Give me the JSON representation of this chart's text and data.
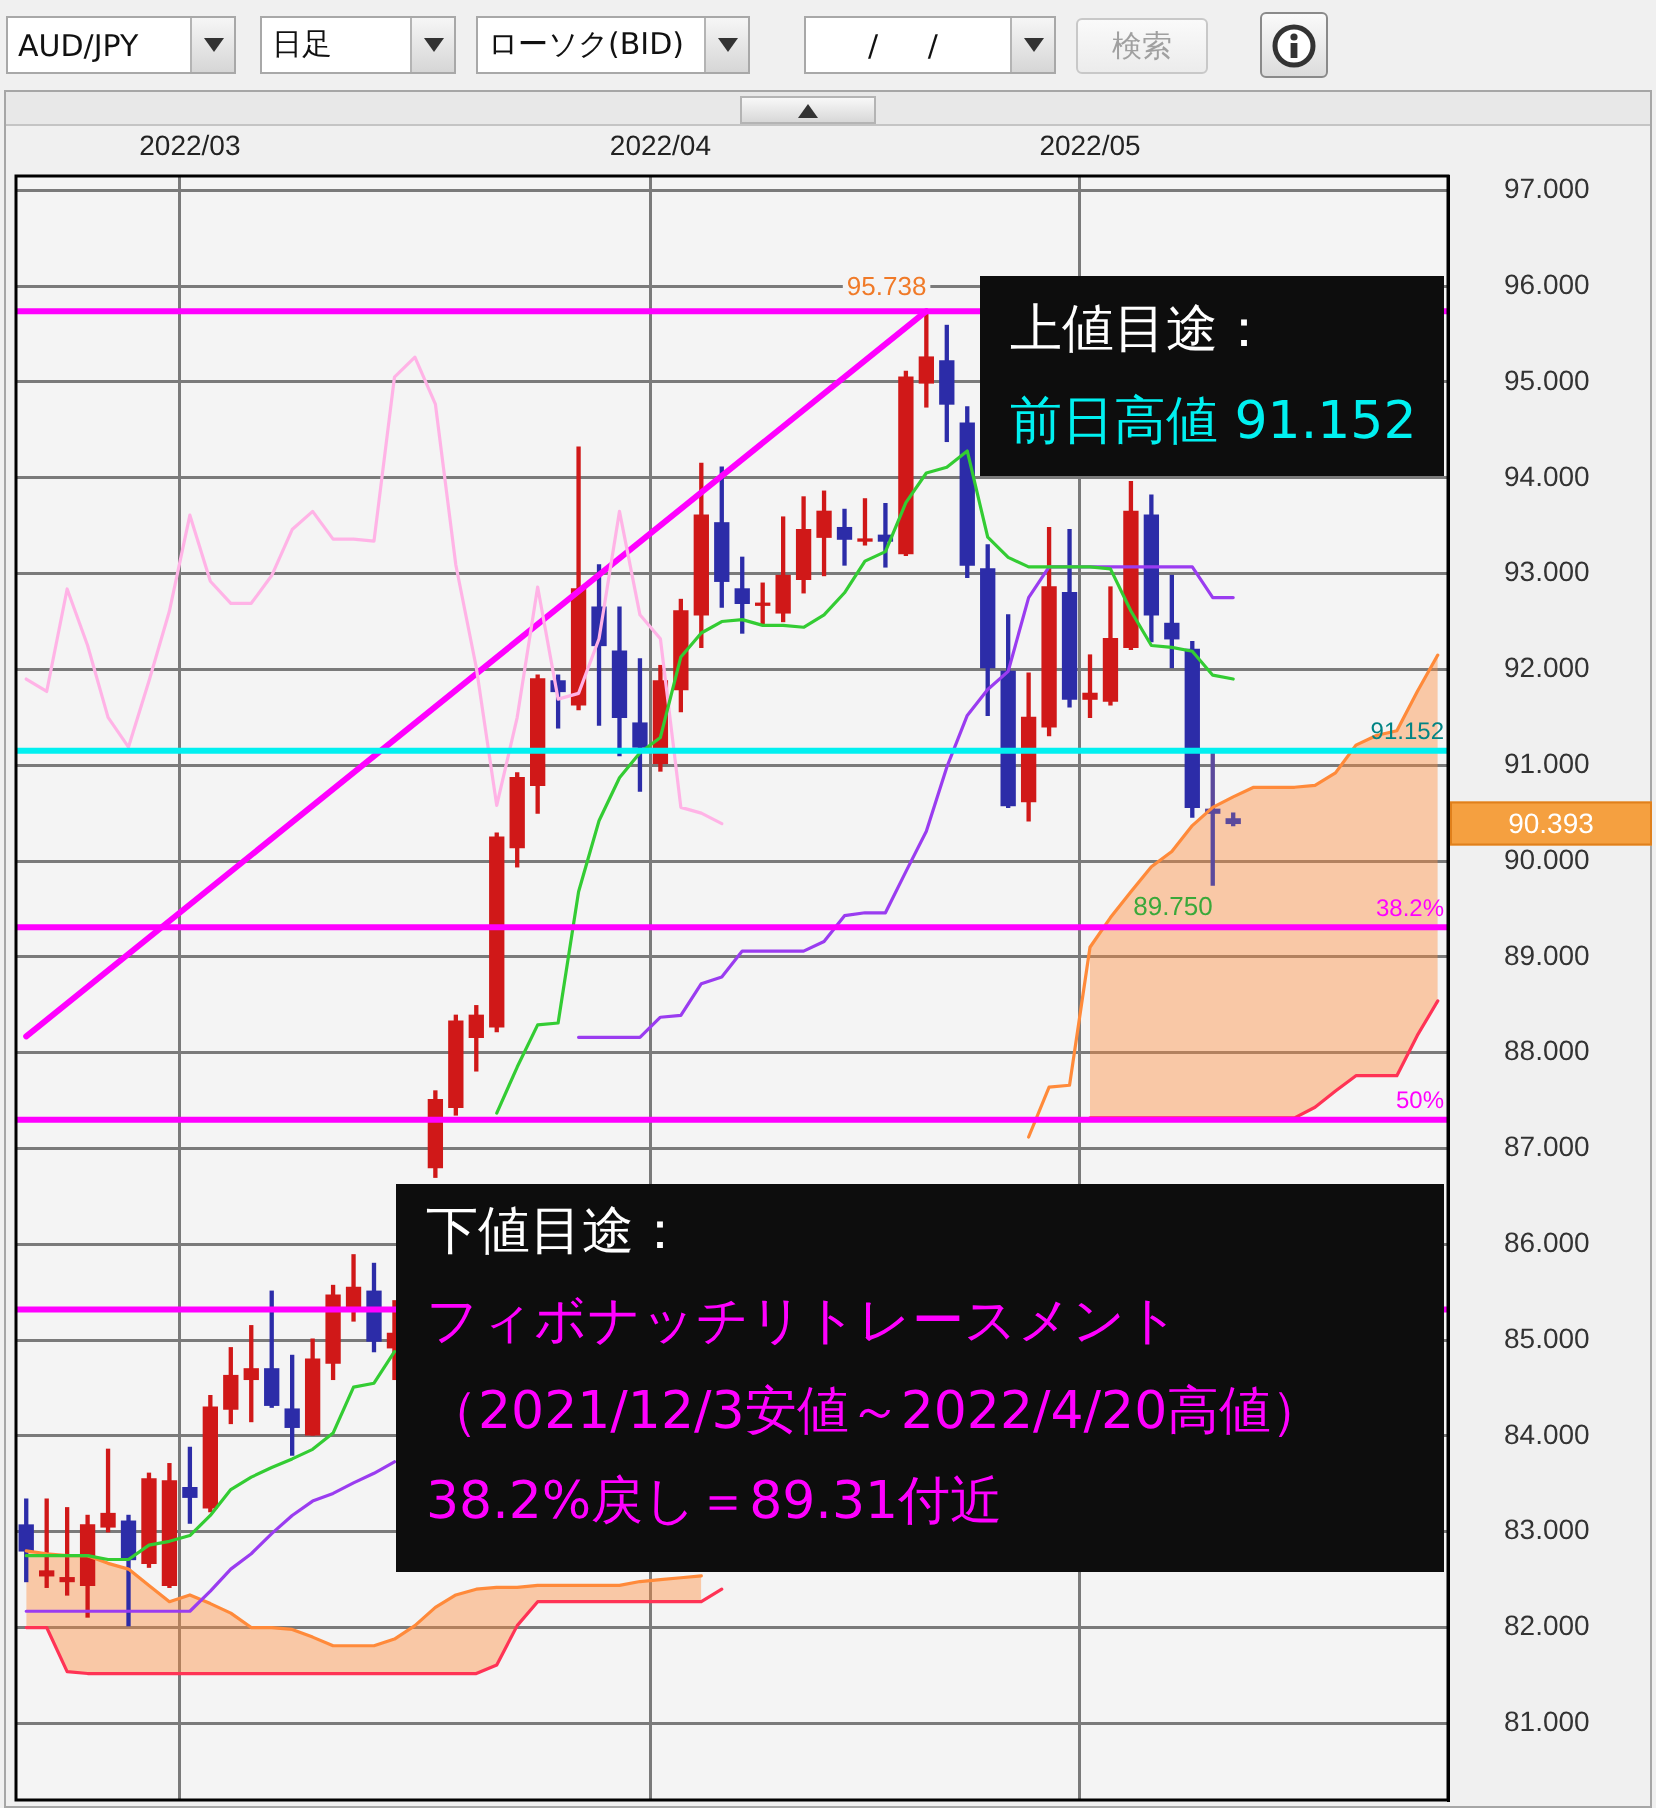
{
  "chart_data": {
    "type": "candlestick",
    "title": "AUD/JPY",
    "subtitle": "日足",
    "categories": [
      null,
      null,
      null,
      null,
      null,
      null,
      null,
      null,
      "2022/03",
      null,
      null,
      null,
      null,
      null,
      null,
      null,
      null,
      null,
      null,
      null,
      null,
      null,
      null,
      null,
      null,
      null,
      null,
      null,
      null,
      null,
      null,
      "2022/04",
      null,
      null,
      null,
      null,
      null,
      null,
      null,
      null,
      null,
      null,
      null,
      null,
      null,
      null,
      null,
      null,
      null,
      null,
      null,
      null,
      "2022/05",
      null,
      null,
      null,
      null,
      null,
      null,
      null,
      null,
      null,
      null,
      null,
      null,
      null,
      null,
      null,
      null,
      null
    ],
    "ohlc": [
      [
        83.07,
        83.34,
        82.48,
        82.8
      ],
      [
        82.54,
        83.34,
        82.42,
        82.59
      ],
      [
        82.48,
        83.25,
        82.34,
        82.52
      ],
      [
        82.44,
        83.17,
        82.11,
        83.07
      ],
      [
        83.05,
        83.86,
        83.0,
        83.19
      ],
      [
        83.11,
        83.17,
        82.02,
        82.71
      ],
      [
        82.67,
        83.61,
        82.63,
        83.55
      ],
      [
        82.44,
        83.71,
        82.42,
        83.53
      ],
      [
        83.46,
        83.88,
        83.09,
        83.36
      ],
      [
        83.25,
        84.42,
        83.21,
        84.3
      ],
      [
        84.28,
        84.92,
        84.13,
        84.63
      ],
      [
        84.59,
        85.15,
        84.15,
        84.7
      ],
      [
        84.7,
        85.51,
        84.3,
        84.32
      ],
      [
        84.28,
        84.84,
        83.8,
        84.09
      ],
      [
        84.01,
        85.01,
        84.01,
        84.8
      ],
      [
        84.76,
        85.57,
        84.59,
        85.47
      ],
      [
        85.32,
        85.89,
        85.2,
        85.55
      ],
      [
        85.51,
        85.8,
        84.88,
        84.99
      ],
      [
        84.92,
        85.41,
        84.59,
        85.07
      ],
      null,
      [
        86.8,
        87.6,
        86.7,
        87.51
      ],
      [
        87.43,
        88.39,
        87.35,
        88.33
      ],
      [
        88.16,
        88.49,
        87.81,
        88.39
      ],
      [
        88.27,
        90.29,
        88.22,
        90.25
      ],
      [
        90.14,
        90.92,
        89.94,
        90.87
      ],
      [
        90.79,
        91.94,
        90.5,
        91.9
      ],
      [
        91.88,
        91.94,
        91.39,
        91.77
      ],
      [
        91.63,
        94.32,
        91.58,
        92.84
      ],
      [
        92.65,
        93.09,
        91.42,
        92.25
      ],
      [
        92.19,
        92.65,
        91.1,
        91.5
      ],
      [
        91.44,
        92.11,
        90.73,
        91.19
      ],
      [
        91.02,
        92.04,
        90.94,
        91.88
      ],
      [
        91.79,
        92.73,
        91.56,
        92.61
      ],
      [
        92.57,
        94.15,
        92.23,
        93.61
      ],
      [
        93.53,
        94.11,
        92.65,
        92.92
      ],
      [
        92.84,
        93.17,
        92.38,
        92.69
      ],
      [
        92.67,
        92.9,
        92.46,
        92.69
      ],
      [
        92.59,
        93.59,
        92.5,
        92.98
      ],
      [
        92.94,
        93.8,
        92.8,
        93.46
      ],
      [
        93.38,
        93.86,
        92.98,
        93.65
      ],
      [
        93.48,
        93.67,
        93.09,
        93.36
      ],
      [
        93.34,
        93.78,
        93.3,
        93.36
      ],
      [
        93.4,
        93.73,
        93.07,
        93.34
      ],
      [
        93.21,
        95.11,
        93.19,
        95.05
      ],
      [
        94.99,
        95.738,
        94.74,
        95.26
      ],
      [
        95.22,
        95.59,
        94.38,
        94.77
      ],
      [
        94.57,
        94.74,
        92.96,
        93.09
      ],
      [
        93.05,
        93.3,
        91.52,
        92.02
      ],
      [
        91.98,
        92.57,
        90.56,
        90.58
      ],
      [
        90.62,
        91.96,
        90.42,
        91.5
      ],
      [
        91.4,
        93.48,
        91.31,
        92.86
      ],
      [
        92.8,
        93.46,
        91.61,
        91.69
      ],
      [
        91.69,
        92.15,
        91.5,
        91.75
      ],
      [
        91.67,
        92.86,
        91.63,
        92.32
      ],
      [
        92.23,
        93.96,
        92.21,
        93.65
      ],
      [
        93.61,
        93.82,
        92.29,
        92.57
      ],
      [
        92.48,
        92.98,
        92.02,
        92.32
      ],
      [
        92.21,
        92.29,
        90.46,
        90.56
      ],
      [
        90.54,
        91.152,
        89.75,
        90.5
      ],
      [
        90.44,
        90.5,
        90.37,
        90.393
      ],
      null,
      null,
      null,
      null,
      null,
      null,
      null,
      null,
      null,
      null
    ],
    "colors": [
      "#2c2ca8",
      "#d01818",
      "#d01818",
      "#d01818",
      "#d01818",
      "#2c2ca8",
      "#d01818",
      "#d01818",
      "#2c2ca8",
      "#d01818",
      "#d01818",
      "#d01818",
      "#2c2ca8",
      "#2c2ca8",
      "#d01818",
      "#d01818",
      "#d01818",
      "#2c2ca8",
      "#d01818",
      null,
      "#d01818",
      "#d01818",
      "#d01818",
      "#d01818",
      "#d01818",
      "#d01818",
      "#2c2ca8",
      "#d01818",
      "#2c2ca8",
      "#2c2ca8",
      "#2c2ca8",
      "#d01818",
      "#d01818",
      "#d01818",
      "#2c2ca8",
      "#2c2ca8",
      "#d01818",
      "#d01818",
      "#d01818",
      "#d01818",
      "#2c2ca8",
      "#d01818",
      "#2c2ca8",
      "#d01818",
      "#d01818",
      "#2c2ca8",
      "#2c2ca8",
      "#2c2ca8",
      "#2c2ca8",
      "#d01818",
      "#d01818",
      "#2c2ca8",
      "#d01818",
      "#d01818",
      "#d01818",
      "#2c2ca8",
      "#2c2ca8",
      "#2c2ca8",
      "#5b4a9c",
      "#5b4a9c",
      null,
      null,
      null,
      null,
      null,
      null,
      null,
      null,
      null,
      null
    ],
    "series": [
      {
        "type": "line",
        "color": "#33cc33",
        "values": [
          82.75,
          82.75,
          82.75,
          82.75,
          82.71,
          82.71,
          82.86,
          82.9,
          82.96,
          83.17,
          83.44,
          83.57,
          83.67,
          83.76,
          83.86,
          84.03,
          84.51,
          84.55,
          84.88,
          null,
          null,
          null,
          null,
          87.37,
          87.85,
          88.29,
          88.31,
          89.68,
          90.42,
          90.87,
          91.13,
          91.29,
          92.13,
          92.38,
          92.5,
          92.52,
          92.46,
          92.46,
          92.44,
          92.57,
          92.8,
          93.13,
          93.23,
          93.74,
          94.05,
          94.11,
          94.28,
          93.38,
          93.17,
          93.07,
          93.07,
          93.07,
          93.07,
          93.05,
          92.61,
          92.25,
          92.23,
          92.19,
          91.94,
          91.9,
          null,
          null,
          null,
          null,
          null,
          null,
          null,
          null,
          null,
          null
        ]
      },
      {
        "type": "line",
        "color": "#9a3cf0",
        "values": [
          82.17,
          82.17,
          82.17,
          82.17,
          82.17,
          82.17,
          82.17,
          82.17,
          82.17,
          82.38,
          82.61,
          82.77,
          82.98,
          83.17,
          83.32,
          83.4,
          83.51,
          83.61,
          83.73,
          null,
          null,
          null,
          null,
          null,
          null,
          null,
          null,
          88.16,
          88.16,
          88.16,
          88.16,
          88.37,
          88.39,
          88.72,
          88.79,
          89.06,
          89.06,
          89.06,
          89.06,
          89.16,
          89.43,
          89.46,
          89.46,
          89.89,
          90.31,
          90.98,
          91.52,
          91.79,
          91.98,
          92.75,
          93.07,
          93.07,
          93.07,
          93.07,
          93.07,
          93.07,
          93.07,
          93.07,
          92.75,
          92.75,
          null,
          null,
          null,
          null,
          null,
          null,
          null,
          null,
          null,
          null
        ]
      },
      {
        "type": "line",
        "color": "#ffb3e6",
        "values": [
          91.9,
          91.77,
          92.84,
          92.25,
          91.5,
          91.19,
          91.88,
          92.61,
          93.61,
          92.92,
          92.69,
          92.69,
          92.98,
          93.46,
          93.65,
          93.36,
          93.36,
          93.34,
          95.05,
          95.26,
          94.77,
          93.09,
          92.02,
          90.58,
          91.5,
          92.86,
          91.69,
          91.75,
          92.32,
          93.65,
          92.57,
          92.32,
          90.56,
          90.5,
          90.39,
          null,
          null,
          null,
          null,
          null,
          null,
          null,
          null,
          null,
          null,
          null,
          null,
          null,
          null,
          null,
          null,
          null,
          null,
          null,
          null,
          null,
          null,
          null,
          null,
          null,
          null,
          null,
          null,
          null,
          null,
          null,
          null,
          null,
          null,
          null
        ]
      },
      {
        "type": "line",
        "color": "#ff8a3a",
        "values": [
          82.8,
          82.77,
          82.75,
          82.75,
          82.67,
          82.61,
          82.44,
          82.27,
          82.34,
          82.25,
          82.15,
          82.0,
          82.0,
          81.98,
          81.9,
          81.81,
          81.81,
          81.81,
          81.88,
          82.02,
          82.21,
          82.34,
          82.4,
          82.42,
          82.42,
          82.44,
          82.44,
          82.44,
          82.44,
          82.44,
          82.48,
          82.5,
          82.52,
          82.54,
          null,
          null,
          null,
          null,
          null,
          null,
          null,
          null,
          null,
          null,
          null,
          null,
          null,
          null,
          null,
          null,
          null,
          null,
          null,
          null,
          null,
          null,
          null,
          null,
          null,
          null,
          null,
          null,
          null,
          null,
          null,
          null,
          null,
          null,
          null,
          null
        ],
        "upper": [
          82.8,
          82.77,
          82.75,
          82.75,
          82.67,
          82.61,
          82.44,
          82.27,
          82.34,
          82.25,
          82.15,
          82.0,
          82.0,
          81.98,
          81.9,
          81.81,
          81.81,
          81.81,
          81.88,
          82.02,
          82.21,
          82.34,
          82.4,
          82.42,
          82.42,
          82.44,
          82.44,
          82.44,
          82.44,
          82.44,
          82.48,
          82.5,
          82.52,
          82.54,
          null,
          null,
          null,
          null,
          null,
          null,
          null,
          null,
          null,
          null,
          null,
          null,
          null,
          null,
          null,
          null,
          null,
          null,
          null,
          null,
          null,
          null,
          null,
          null,
          null,
          null,
          null,
          null,
          null,
          null,
          null,
          null,
          null,
          null,
          null,
          null
        ],
        "lower": [
          82.0,
          82.0,
          81.54,
          81.52,
          81.52,
          81.52,
          81.52,
          81.52,
          81.52,
          81.52,
          81.52,
          81.52,
          81.52,
          81.52,
          81.52,
          81.52,
          81.52,
          81.52,
          81.52,
          81.52,
          81.52,
          81.52,
          81.52,
          81.61,
          82.02,
          82.27,
          82.27,
          82.27,
          82.27,
          82.27,
          82.27,
          82.27,
          82.27,
          82.27,
          null,
          null,
          null,
          null,
          null,
          null,
          null,
          null,
          null,
          null,
          null,
          null,
          null,
          null,
          null,
          null,
          null,
          null,
          null,
          null,
          null,
          null,
          null,
          null,
          null,
          null,
          null,
          null,
          null,
          null,
          null,
          null,
          null,
          null,
          null,
          null
        ]
      },
      {
        "type": "line",
        "color": "#ff8a3a",
        "values": [
          null,
          null,
          null,
          null,
          null,
          null,
          null,
          null,
          null,
          null,
          null,
          null,
          null,
          null,
          null,
          null,
          null,
          null,
          null,
          null,
          null,
          null,
          null,
          null,
          null,
          null,
          null,
          null,
          null,
          null,
          null,
          null,
          null,
          null,
          null,
          null,
          null,
          null,
          null,
          null,
          null,
          null,
          null,
          null,
          null,
          null,
          null,
          null,
          null,
          87.12,
          87.64,
          87.66,
          89.1,
          89.41,
          89.68,
          89.94,
          90.1,
          90.37,
          90.56,
          90.67,
          90.77,
          90.77,
          90.77,
          90.79,
          90.92,
          91.21,
          91.31,
          91.36,
          91.77,
          92.15
        ],
        "upper": [
          null,
          null,
          null,
          null,
          null,
          null,
          null,
          null,
          null,
          null,
          null,
          null,
          null,
          null,
          null,
          null,
          null,
          null,
          null,
          null,
          null,
          null,
          null,
          null,
          null,
          null,
          null,
          null,
          null,
          null,
          null,
          null,
          null,
          null,
          null,
          null,
          null,
          null,
          null,
          null,
          null,
          null,
          null,
          null,
          null,
          null,
          null,
          null,
          null,
          null,
          null,
          null,
          89.1,
          89.41,
          89.68,
          89.94,
          90.1,
          90.37,
          90.56,
          90.67,
          90.77,
          90.77,
          90.77,
          90.79,
          90.92,
          91.21,
          91.31,
          91.36,
          91.77,
          92.15
        ],
        "lower": [
          null,
          null,
          null,
          null,
          null,
          null,
          null,
          null,
          null,
          null,
          null,
          null,
          null,
          null,
          null,
          null,
          null,
          null,
          null,
          null,
          null,
          null,
          null,
          null,
          null,
          null,
          null,
          null,
          null,
          null,
          null,
          null,
          null,
          null,
          null,
          null,
          null,
          null,
          null,
          null,
          null,
          null,
          null,
          null,
          null,
          null,
          null,
          null,
          null,
          null,
          null,
          null,
          87.32,
          87.32,
          87.32,
          87.32,
          87.32,
          87.32,
          87.32,
          87.32,
          87.32,
          87.32,
          87.32,
          87.43,
          87.6,
          87.76,
          87.76,
          87.76,
          88.18,
          88.54
        ]
      },
      {
        "type": "line",
        "color": "#ff3355",
        "values": [
          82.0,
          82.0,
          81.54,
          81.52,
          81.52,
          81.52,
          81.52,
          81.52,
          81.52,
          81.52,
          81.52,
          81.52,
          81.52,
          81.52,
          81.52,
          81.52,
          81.52,
          81.52,
          81.52,
          81.52,
          81.52,
          81.52,
          81.52,
          81.61,
          82.02,
          82.27,
          82.27,
          82.27,
          82.27,
          82.27,
          82.27,
          82.27,
          82.27,
          82.27,
          82.4,
          null,
          null,
          null,
          null,
          null,
          null,
          null,
          null,
          null,
          null,
          null,
          null,
          null,
          null,
          null,
          null,
          null,
          87.32,
          87.32,
          87.32,
          87.32,
          87.32,
          87.32,
          87.32,
          87.32,
          87.32,
          87.32,
          87.32,
          87.43,
          87.6,
          87.76,
          87.76,
          87.76,
          88.18,
          88.54
        ]
      },
      {
        "type": "line",
        "color": "#ff00ff",
        "values": [
          88.17,
          null,
          null,
          null,
          null,
          null,
          null,
          null,
          null,
          null,
          null,
          null,
          null,
          null,
          null,
          null,
          null,
          null,
          null,
          null,
          null,
          null,
          null,
          null,
          null,
          null,
          null,
          null,
          null,
          null,
          null,
          null,
          null,
          null,
          null,
          null,
          null,
          null,
          null,
          null,
          null,
          null,
          null,
          null,
          95.74,
          null,
          null,
          null,
          null,
          null,
          null,
          null,
          null,
          null,
          null,
          null,
          null,
          null,
          null,
          null,
          null,
          null,
          null,
          null,
          null,
          null,
          null,
          null,
          null,
          null
        ]
      }
    ],
    "ref_lines": [
      {
        "axis": "y",
        "value": 95.738,
        "color": "#ff00ff"
      },
      {
        "axis": "y",
        "value": 91.152,
        "label": "91.152",
        "color": "#00f0f0"
      },
      {
        "axis": "y",
        "value": 89.31,
        "color": "#ff00ff"
      },
      {
        "axis": "y",
        "value": 87.3,
        "color": "#ff00ff"
      },
      {
        "axis": "y",
        "value": 85.32,
        "color": "#ff00ff"
      }
    ],
    "annotations": [
      "ローソク(BID)",
      "/ /",
      "検索",
      "上値目途：",
      "前日高値 91.152",
      "下値目途：",
      "フィボナッチリトレースメント",
      "（2021/12/3安値～2022/4/20高値）",
      "38.2%戻し＝89.31付近",
      "95.738",
      "89.750",
      "90.393",
      {
        "text": "38.2%",
        "y": 89.31
      },
      {
        "text": "50%",
        "y": 87.3
      }
    ],
    "ylim": [
      80.2,
      97.15
    ],
    "yticks": [
      {
        "value": 81,
        "label": "81.000"
      },
      {
        "value": 82,
        "label": "82.000"
      },
      {
        "value": 83,
        "label": "83.000"
      },
      {
        "value": 84,
        "label": "84.000"
      },
      {
        "value": 85,
        "label": "85.000"
      },
      {
        "value": 86,
        "label": "86.000"
      },
      {
        "value": 87,
        "label": "87.000"
      },
      {
        "value": 88,
        "label": "88.000"
      },
      {
        "value": 89,
        "label": "89.000"
      },
      {
        "value": 90,
        "label": "90.000"
      },
      {
        "value": 91,
        "label": "91.000"
      },
      {
        "value": 92,
        "label": "92.000"
      },
      {
        "value": 93,
        "label": "93.000"
      },
      {
        "value": 94,
        "label": "94.000"
      },
      {
        "value": 95,
        "label": "95.000"
      },
      {
        "value": 96,
        "label": "96.000"
      },
      {
        "value": 97,
        "label": "97.000"
      }
    ],
    "grid": true
  }
}
